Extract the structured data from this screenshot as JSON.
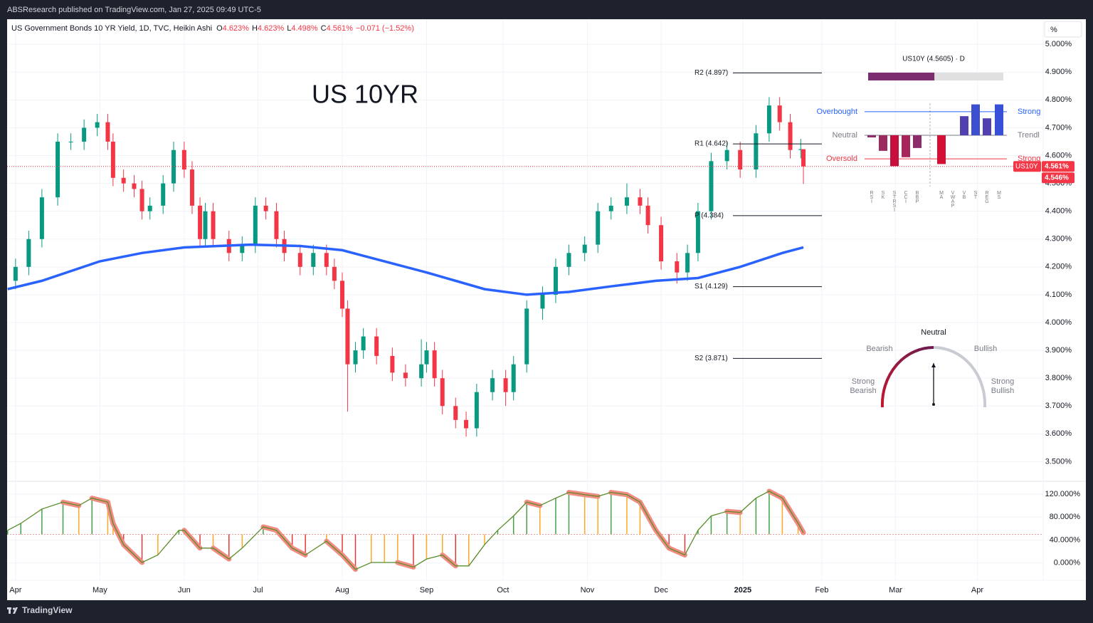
{
  "topbar": {
    "text": "ABSResearch published on TradingView.com, Jan 27, 2025 09:49 UTC-5"
  },
  "footer": {
    "brand": "TradingView"
  },
  "chart_data": {
    "type": "candlestick",
    "title": "US Government Bonds 10 YR Yield, 1D, TVC, Heikin Ashi",
    "ohlc": [
      {
        "label": "O",
        "value": "4.623%"
      },
      {
        "label": "H",
        "value": "4.623%"
      },
      {
        "label": "L",
        "value": "4.498%"
      },
      {
        "label": "C",
        "value": "4.561%"
      }
    ],
    "change": "−0.071 (−1.52%)",
    "annotation": "US 10YR",
    "unit_button": "%",
    "symbol": "US10Y",
    "x": [
      0,
      5,
      10,
      16,
      21,
      26,
      31,
      35,
      37,
      41,
      45,
      48,
      51,
      56,
      60,
      64,
      67,
      70,
      72,
      75,
      81,
      86,
      91,
      95,
      99,
      102,
      108,
      113,
      118,
      121,
      124,
      126,
      129,
      132,
      137,
      143,
      148,
      154,
      156,
      159,
      162,
      167,
      171,
      175,
      181,
      186,
      189,
      194,
      200,
      205,
      210,
      216,
      221,
      226,
      232,
      237,
      240,
      245,
      251,
      255,
      259,
      264,
      270,
      275,
      281,
      286,
      290,
      294,
      298,
      299
    ],
    "open": [
      4.15,
      4.2,
      4.3,
      4.45,
      4.65,
      4.65,
      4.7,
      4.72,
      4.65,
      4.52,
      4.5,
      4.48,
      4.4,
      4.42,
      4.5,
      4.62,
      4.55,
      4.42,
      4.3,
      4.4,
      4.3,
      4.25,
      4.28,
      4.42,
      4.4,
      4.3,
      4.25,
      4.2,
      4.25,
      4.2,
      4.15,
      4.05,
      3.85,
      3.9,
      3.95,
      3.88,
      3.82,
      3.8,
      3.85,
      3.9,
      3.8,
      3.7,
      3.65,
      3.62,
      3.75,
      3.8,
      3.75,
      3.85,
      4.05,
      4.1,
      4.2,
      4.25,
      4.28,
      4.4,
      4.42,
      4.45,
      4.42,
      4.35,
      4.22,
      4.18,
      4.25,
      4.4,
      4.58,
      4.62,
      4.55,
      4.68,
      4.78,
      4.72,
      4.62,
      4.623
    ],
    "high": [
      4.23,
      4.33,
      4.48,
      4.68,
      4.68,
      4.73,
      4.75,
      4.75,
      4.68,
      4.55,
      4.53,
      4.51,
      4.45,
      4.53,
      4.65,
      4.65,
      4.58,
      4.45,
      4.43,
      4.43,
      4.33,
      4.31,
      4.45,
      4.45,
      4.43,
      4.33,
      4.28,
      4.28,
      4.28,
      4.23,
      4.18,
      4.08,
      3.93,
      3.98,
      3.98,
      3.91,
      3.85,
      3.94,
      3.93,
      3.93,
      3.83,
      3.73,
      3.68,
      3.78,
      3.83,
      3.83,
      3.88,
      4.08,
      4.13,
      4.23,
      4.28,
      4.31,
      4.43,
      4.45,
      4.5,
      4.48,
      4.45,
      4.38,
      4.25,
      4.28,
      4.43,
      4.61,
      4.65,
      4.65,
      4.71,
      4.81,
      4.81,
      4.75,
      4.66,
      4.623
    ],
    "low": [
      4.12,
      4.17,
      4.27,
      4.42,
      4.62,
      4.62,
      4.67,
      4.62,
      4.49,
      4.47,
      4.45,
      4.37,
      4.37,
      4.39,
      4.47,
      4.52,
      4.39,
      4.27,
      4.27,
      4.27,
      4.22,
      4.22,
      4.25,
      4.37,
      4.27,
      4.22,
      4.17,
      4.17,
      4.17,
      4.12,
      4.02,
      3.68,
      3.82,
      3.87,
      3.85,
      3.79,
      3.77,
      3.77,
      3.82,
      3.77,
      3.67,
      3.62,
      3.59,
      3.59,
      3.72,
      3.7,
      3.72,
      3.82,
      4.01,
      4.07,
      4.17,
      4.22,
      4.25,
      4.37,
      4.39,
      4.39,
      4.32,
      4.19,
      4.14,
      4.15,
      4.22,
      4.37,
      4.55,
      4.52,
      4.52,
      4.65,
      4.69,
      4.59,
      4.59,
      4.498
    ],
    "close": [
      4.2,
      4.3,
      4.45,
      4.65,
      4.65,
      4.7,
      4.72,
      4.65,
      4.52,
      4.5,
      4.48,
      4.4,
      4.42,
      4.5,
      4.62,
      4.55,
      4.42,
      4.3,
      4.4,
      4.3,
      4.25,
      4.28,
      4.42,
      4.4,
      4.3,
      4.25,
      4.2,
      4.25,
      4.2,
      4.15,
      4.05,
      3.85,
      3.9,
      3.95,
      3.88,
      3.82,
      3.8,
      3.85,
      3.9,
      3.8,
      3.7,
      3.65,
      3.62,
      3.75,
      3.8,
      3.75,
      3.85,
      4.05,
      4.1,
      4.2,
      4.25,
      4.28,
      4.4,
      4.42,
      4.45,
      4.42,
      4.35,
      4.22,
      4.18,
      4.25,
      4.4,
      4.58,
      4.62,
      4.55,
      4.68,
      4.78,
      4.72,
      4.62,
      4.623,
      4.561
    ],
    "up_color": "#089981",
    "down_color": "#f23645",
    "ma": {
      "color": "#2962ff",
      "x": [
        -3,
        10,
        32,
        48,
        64,
        89,
        108,
        124,
        140,
        156,
        178,
        194,
        210,
        226,
        243,
        259,
        275,
        291,
        299
      ],
      "values": [
        4.12,
        4.15,
        4.22,
        4.25,
        4.27,
        4.28,
        4.275,
        4.26,
        4.22,
        4.18,
        4.12,
        4.1,
        4.11,
        4.13,
        4.15,
        4.16,
        4.2,
        4.25,
        4.27
      ]
    },
    "price_labels": [
      {
        "value": 4.561,
        "label": "4.561%"
      },
      {
        "value": 4.546,
        "label": "4.546%"
      }
    ],
    "pivots": [
      {
        "label": "R2 (4.897)",
        "value": 4.897
      },
      {
        "label": "R1 (4.642)",
        "value": 4.642
      },
      {
        "label": "P (4.384)",
        "value": 4.384
      },
      {
        "label": "S1 (4.129)",
        "value": 4.129
      },
      {
        "label": "S2 (3.871)",
        "value": 3.871
      }
    ],
    "xlim": [
      -3.2,
      390
    ],
    "xticks": [
      {
        "value": 0,
        "label": "Apr"
      },
      {
        "value": 32,
        "label": "May"
      },
      {
        "value": 64,
        "label": "Jun"
      },
      {
        "value": 92,
        "label": "Jul"
      },
      {
        "value": 124,
        "label": "Aug"
      },
      {
        "value": 156,
        "label": "Sep"
      },
      {
        "value": 185,
        "label": "Oct"
      },
      {
        "value": 217,
        "label": "Nov"
      },
      {
        "value": 245,
        "label": "Dec"
      },
      {
        "value": 276,
        "label": "2025",
        "bold": true
      },
      {
        "value": 306,
        "label": "Feb"
      },
      {
        "value": 334,
        "label": "Mar"
      },
      {
        "value": 365,
        "label": "Apr"
      }
    ],
    "ylim": [
      3.432,
      5.09
    ],
    "yticks": [
      {
        "value": 5.0,
        "label": "5.000%"
      },
      {
        "value": 4.9,
        "label": "4.900%"
      },
      {
        "value": 4.8,
        "label": "4.800%"
      },
      {
        "value": 4.7,
        "label": "4.700%"
      },
      {
        "value": 4.6,
        "label": "4.600%"
      },
      {
        "value": 4.5,
        "label": "4.500%"
      },
      {
        "value": 4.4,
        "label": "4.400%"
      },
      {
        "value": 4.3,
        "label": "4.300%"
      },
      {
        "value": 4.2,
        "label": "4.200%"
      },
      {
        "value": 4.1,
        "label": "4.100%"
      },
      {
        "value": 4.0,
        "label": "4.000%"
      },
      {
        "value": 3.9,
        "label": "3.900%"
      },
      {
        "value": 3.8,
        "label": "3.800%"
      },
      {
        "value": 3.7,
        "label": "3.700%"
      },
      {
        "value": 3.6,
        "label": "3.600%"
      },
      {
        "value": 3.5,
        "label": "3.500%"
      }
    ],
    "grid": true,
    "oscillator": {
      "x": [
        -3,
        2,
        10,
        18,
        24,
        29,
        35,
        37,
        41,
        48,
        54,
        62,
        64,
        70,
        75,
        81,
        86,
        94,
        99,
        105,
        110,
        118,
        124,
        129,
        135,
        140,
        145,
        151,
        156,
        162,
        167,
        172,
        178,
        183,
        189,
        194,
        199,
        205,
        210,
        216,
        221,
        226,
        232,
        237,
        243,
        248,
        254,
        259,
        264,
        270,
        275,
        281,
        286,
        291,
        297,
        299
      ],
      "values": [
        57,
        69,
        94,
        106,
        100,
        113,
        106,
        69,
        32,
        1,
        14,
        57,
        57,
        26,
        26,
        7,
        26,
        63,
        57,
        26,
        14,
        38,
        14,
        -11,
        1,
        1,
        1,
        -7,
        7,
        14,
        -5,
        -5,
        32,
        57,
        82,
        106,
        100,
        113,
        123,
        119,
        116,
        123,
        119,
        106,
        57,
        26,
        14,
        57,
        82,
        90,
        88,
        113,
        125,
        113,
        69,
        53
      ],
      "baseline": 50,
      "ylim": [
        -30,
        141
      ],
      "yticks": [
        {
          "value": 120,
          "label": "120.000%"
        },
        {
          "value": 80,
          "label": "80.000%"
        },
        {
          "value": 40,
          "label": "40.000%"
        },
        {
          "value": 0,
          "label": "0.000%"
        }
      ],
      "line_color": "#5b8c2a",
      "fill_color": "#f28b82",
      "rise_color": "#43a047",
      "fall_color": "#ffa726",
      "neg_color": "#e53935"
    },
    "widget": {
      "title": "US10Y (4.5605) · D",
      "progress": 49,
      "progress_color": "#7b2d6f",
      "ylim": [
        -160,
        160
      ],
      "levels": [
        {
          "label": "Overbought",
          "right": "Strong",
          "value": 100,
          "color": "#2962ff"
        },
        {
          "label": "Neutral",
          "right": "Trendl",
          "value": 0,
          "color": "#787b86"
        },
        {
          "label": "Oversold",
          "right": "Strong",
          "value": -100,
          "color": "#f23645"
        }
      ],
      "indicators": [
        {
          "name": "RSI",
          "value": -9,
          "color": "#8e2c6b"
        },
        {
          "name": "SK",
          "value": -66,
          "color": "#9c2a5f"
        },
        {
          "name": "STRSI",
          "value": -131,
          "color": "#c8103e"
        },
        {
          "name": "CCI",
          "value": -93,
          "color": "#a8245b"
        },
        {
          "name": "BBP",
          "value": -54,
          "color": "#8e2c6b"
        },
        {
          "name": "MA",
          "value": -122,
          "color": "#d50f33"
        },
        {
          "name": "VWAP",
          "value": 0,
          "color": "#787b86"
        },
        {
          "name": "VB",
          "value": 81,
          "color": "#5040b0"
        },
        {
          "name": "ST",
          "value": 131,
          "color": "#3b4fd0"
        },
        {
          "name": "REG",
          "value": 72,
          "color": "#5040b0"
        },
        {
          "name": "MS",
          "value": 131,
          "color": "#3850d8"
        }
      ]
    },
    "gauge": {
      "labels": [
        "Strong Bearish",
        "Bearish",
        "Neutral",
        "Bullish",
        "Strong Bullish"
      ],
      "range": [
        -1,
        1
      ],
      "needle": 0
    }
  }
}
